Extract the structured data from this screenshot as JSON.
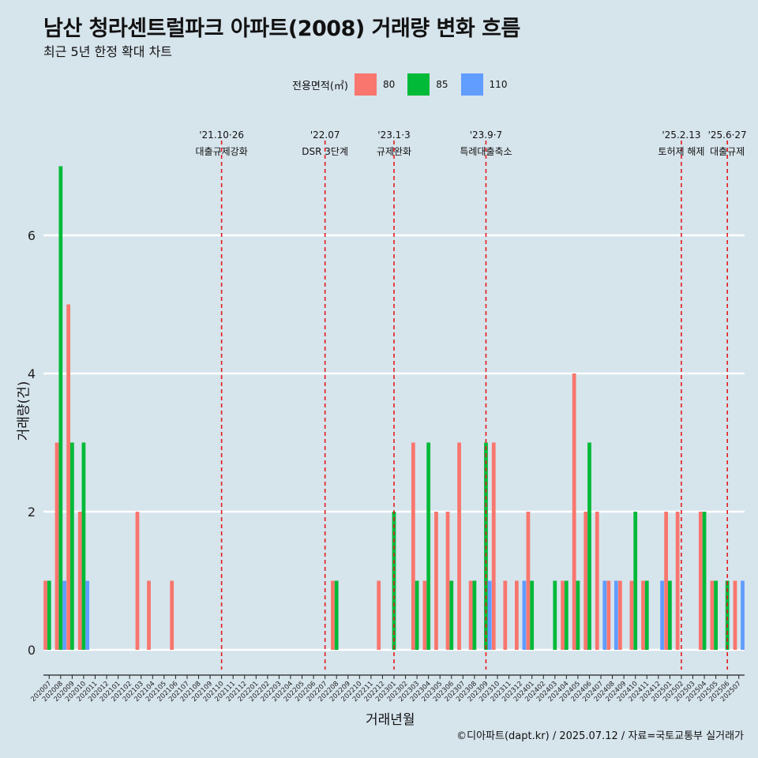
{
  "title": "남산 청라센트럴파크 아파트(2008) 거래량 변화 흐름",
  "subtitle": "최근 5년 한정 확대 차트",
  "legend": {
    "title": "전용면적(㎡)",
    "items": [
      {
        "label": "80",
        "color": "#f8766d"
      },
      {
        "label": "85",
        "color": "#00ba38"
      },
      {
        "label": "110",
        "color": "#619cff"
      }
    ]
  },
  "caption": "©디아파트(dapt.kr) / 2025.07.12 / 자료=국토교통부 실거래가",
  "chart_data": {
    "type": "bar",
    "xlabel": "거래년월",
    "ylabel": "거래량(건)",
    "ylim": [
      0,
      7
    ],
    "yticks": [
      0,
      2,
      4,
      6
    ],
    "categories": [
      "202007",
      "202008",
      "202009",
      "202010",
      "202011",
      "202012",
      "202101",
      "202102",
      "202103",
      "202104",
      "202105",
      "202106",
      "202107",
      "202108",
      "202109",
      "202110",
      "202111",
      "202112",
      "202201",
      "202202",
      "202203",
      "202204",
      "202205",
      "202206",
      "202207",
      "202208",
      "202209",
      "202210",
      "202211",
      "202212",
      "202301",
      "202302",
      "202303",
      "202304",
      "202305",
      "202306",
      "202307",
      "202308",
      "202309",
      "202310",
      "202311",
      "202312",
      "202401",
      "202402",
      "202403",
      "202404",
      "202405",
      "202406",
      "202407",
      "202408",
      "202409",
      "202410",
      "202411",
      "202412",
      "202501",
      "202502",
      "202503",
      "202504",
      "202505",
      "202506",
      "202507"
    ],
    "series": [
      {
        "name": "80",
        "color": "#f8766d",
        "values": [
          1,
          3,
          5,
          2,
          0,
          0,
          0,
          0,
          2,
          1,
          0,
          1,
          0,
          0,
          0,
          0,
          0,
          0,
          0,
          0,
          0,
          0,
          0,
          0,
          0,
          1,
          0,
          0,
          0,
          1,
          0,
          0,
          3,
          1,
          2,
          2,
          3,
          1,
          0,
          3,
          1,
          1,
          2,
          0,
          0,
          1,
          4,
          2,
          2,
          1,
          1,
          1,
          1,
          0,
          2,
          2,
          0,
          2,
          1,
          0,
          1
        ]
      },
      {
        "name": "85",
        "color": "#00ba38",
        "values": [
          1,
          7,
          3,
          3,
          0,
          0,
          0,
          0,
          0,
          0,
          0,
          0,
          0,
          0,
          0,
          0,
          0,
          0,
          0,
          0,
          0,
          0,
          0,
          0,
          0,
          1,
          0,
          0,
          0,
          0,
          2,
          0,
          1,
          3,
          0,
          1,
          0,
          1,
          3,
          0,
          0,
          0,
          1,
          0,
          1,
          1,
          1,
          3,
          0,
          0,
          0,
          2,
          1,
          0,
          1,
          0,
          0,
          2,
          1,
          1,
          0
        ]
      },
      {
        "name": "110",
        "color": "#619cff",
        "values": [
          0,
          1,
          0,
          1,
          0,
          0,
          0,
          0,
          0,
          0,
          0,
          0,
          0,
          0,
          0,
          0,
          0,
          0,
          0,
          0,
          0,
          0,
          0,
          0,
          0,
          0,
          0,
          0,
          0,
          0,
          0,
          0,
          0,
          0,
          0,
          0,
          0,
          0,
          1,
          0,
          0,
          1,
          0,
          0,
          0,
          0,
          0,
          0,
          1,
          1,
          0,
          0,
          0,
          1,
          0,
          0,
          0,
          0,
          0,
          0,
          1
        ]
      }
    ],
    "grid": "horizontal",
    "legend_position": "top",
    "annotations": [
      {
        "label": "'21.10·26",
        "sub": "대출규제강화",
        "at": 15.5
      },
      {
        "label": "'22.07",
        "sub": "DSR 3단계",
        "at": 24.5
      },
      {
        "label": "'23.1·3",
        "sub": "규제완화",
        "at": 30.5
      },
      {
        "label": "'23.9·7",
        "sub": "특례대출축소",
        "at": 38.5
      },
      {
        "label": "'25.2.13",
        "sub": "토허제 해제",
        "at": 55.5
      },
      {
        "label": "'25.6·27",
        "sub": "대출규제",
        "at": 59.5
      }
    ]
  }
}
